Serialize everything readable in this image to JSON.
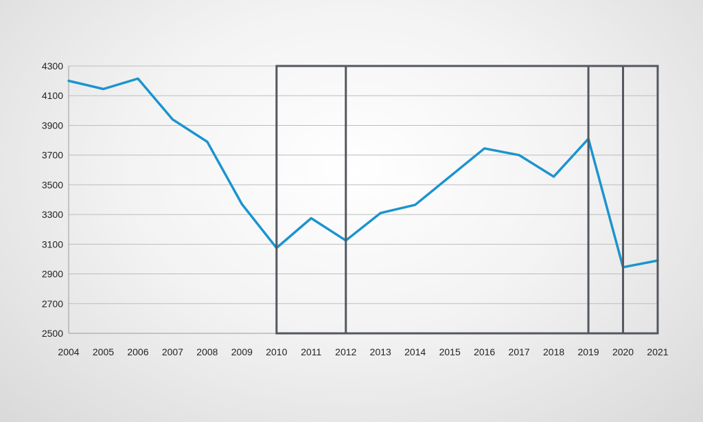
{
  "chart_data": {
    "type": "line",
    "title": "",
    "xlabel": "",
    "ylabel": "",
    "x": [
      "2004",
      "2005",
      "2006",
      "2007",
      "2008",
      "2009",
      "2010",
      "2011",
      "2012",
      "2013",
      "2014",
      "2015",
      "2016",
      "2017",
      "2018",
      "2019",
      "2020",
      "2021"
    ],
    "series": [
      {
        "values": [
          4200,
          4145,
          4215,
          3940,
          3790,
          3370,
          3075,
          3275,
          3125,
          3310,
          3365,
          3555,
          3745,
          3700,
          3555,
          3810,
          2945,
          2990
        ]
      }
    ],
    "ylim": [
      2500,
      4300
    ],
    "yticks": [
      2500,
      2700,
      2900,
      3100,
      3300,
      3500,
      3700,
      3900,
      4100,
      4300
    ],
    "grid": true,
    "legend": "none",
    "highlight_periods": {
      "outer_frame": [
        "2010",
        "2021"
      ],
      "dividers": [
        "2012",
        "2019",
        "2020"
      ]
    },
    "colors": {
      "series": "#1b94cf",
      "frame": "#53575e",
      "grid": "#bdbdbd"
    }
  }
}
